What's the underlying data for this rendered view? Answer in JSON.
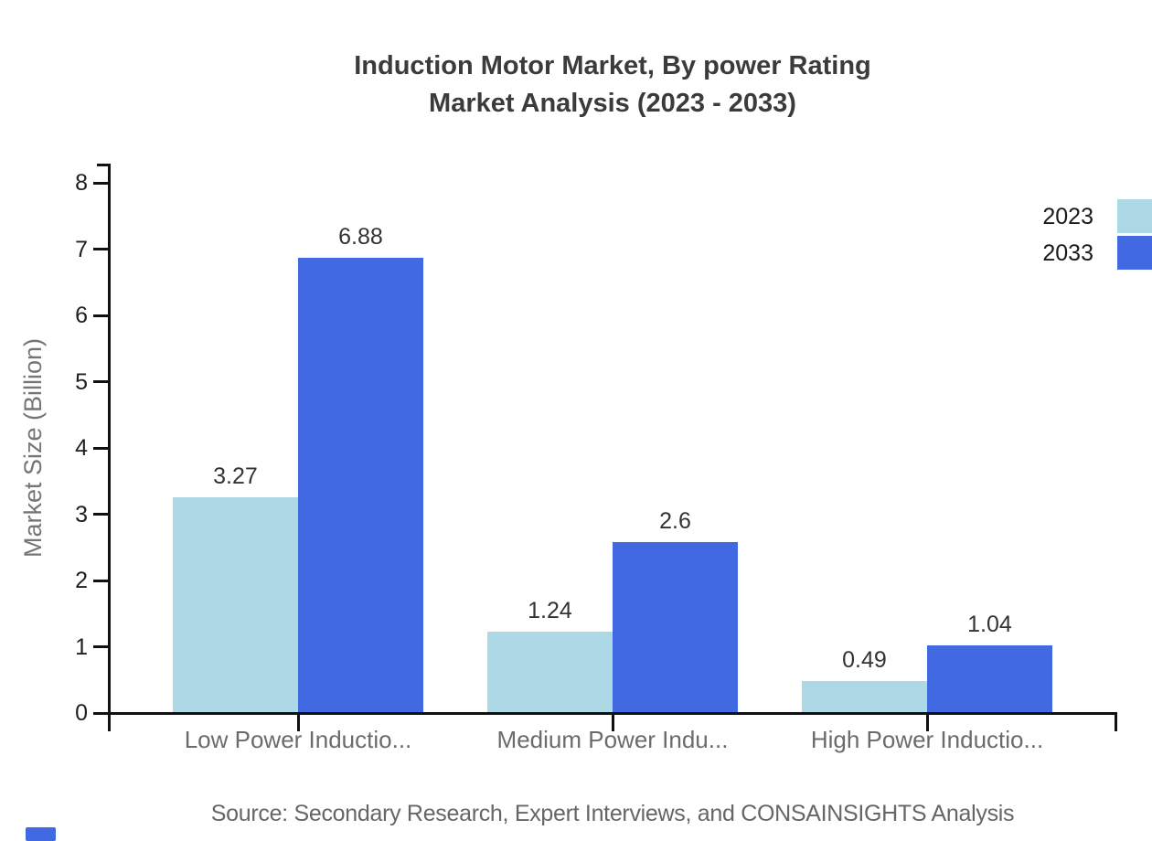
{
  "title": {
    "line1": "Induction Motor Market, By power Rating",
    "line2": "Market Analysis (2023 - 2033)"
  },
  "source": {
    "text": "Source: Secondary Research, Expert Interviews, and CONSAINSIGHTS Analysis"
  },
  "colors": {
    "series_2023": "#ADD8E6",
    "series_2033": "#4169E1",
    "axis": "#111111",
    "title_text": "#3b3b3b",
    "value_text": "#333333",
    "category_text": "#6b6b6b",
    "ylabel_text": "#757575",
    "source_text": "#666666",
    "watermark": "#4169E1"
  },
  "chart_data": {
    "type": "bar",
    "title": "Induction Motor Market, By power Rating Market Analysis (2023 - 2033)",
    "categories": [
      "Low Power Inductio...",
      "Medium Power Indu...",
      "High Power Inductio..."
    ],
    "series": [
      {
        "name": "2023",
        "color": "#ADD8E6",
        "values": [
          3.27,
          1.24,
          0.49
        ]
      },
      {
        "name": "2033",
        "color": "#4169E1",
        "values": [
          6.88,
          2.6,
          1.04
        ]
      }
    ],
    "value_labels": [
      [
        "3.27",
        "1.24",
        "0.49"
      ],
      [
        "6.88",
        "2.6",
        "1.04"
      ]
    ],
    "xlabel": "",
    "ylabel": "Market Size (Billion)",
    "ylim": [
      0,
      8
    ],
    "yticks": [
      0,
      1,
      2,
      3,
      4,
      5,
      6,
      7,
      8
    ],
    "grid": false,
    "legend_position": "top-right"
  }
}
